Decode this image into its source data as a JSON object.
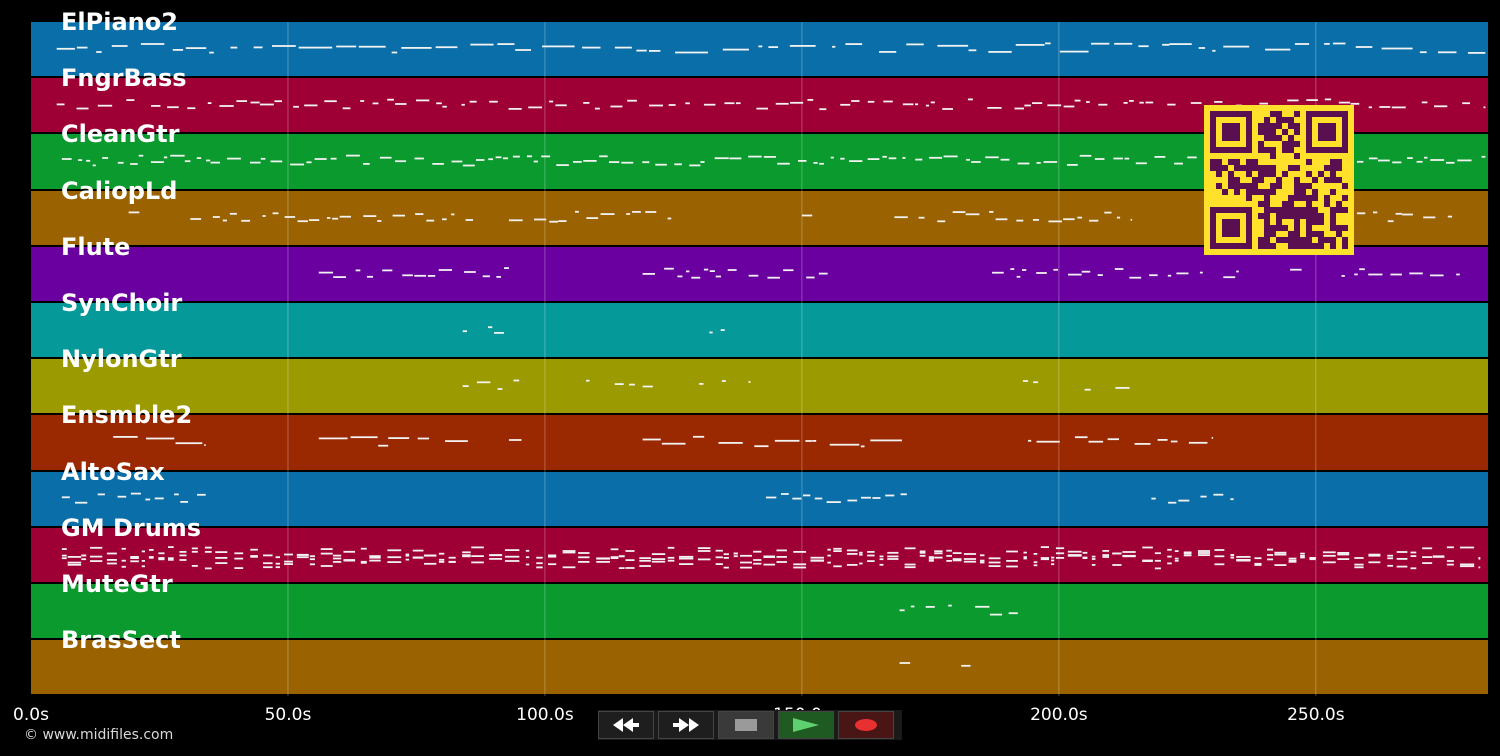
{
  "lanes": [
    {
      "name": "ElPiano2",
      "color": "#0a6ea8"
    },
    {
      "name": "FngrBass",
      "color": "#9e0035"
    },
    {
      "name": "CleanGtr",
      "color": "#0a9a2e"
    },
    {
      "name": "CaliopLd",
      "color": "#9a6200"
    },
    {
      "name": "Flute",
      "color": "#6a00a0"
    },
    {
      "name": "SynChoir",
      "color": "#06999a"
    },
    {
      "name": "NylonGtr",
      "color": "#9b9a00"
    },
    {
      "name": "Ensmble2",
      "color": "#9a2800"
    },
    {
      "name": "AltoSax",
      "color": "#0a6ea8"
    },
    {
      "name": "GM Drums",
      "color": "#9e0035"
    },
    {
      "name": "MuteGtr",
      "color": "#0a9a2e"
    },
    {
      "name": "BrasSect",
      "color": "#9a6200"
    }
  ],
  "time_axis": {
    "min_seconds": 0,
    "max_seconds": 283.5,
    "unit": "s",
    "ticks": [
      "0.0s",
      "50.0s",
      "100.0s",
      "150.0s",
      "200.0s",
      "250.0s"
    ],
    "tick_values": [
      0,
      50,
      100,
      150,
      200,
      250
    ],
    "grid": true
  },
  "transport": {
    "rewind_icon": "rewind-icon",
    "forward_icon": "fast-forward-icon",
    "stop_icon": "stop-icon",
    "play_icon": "play-icon",
    "record_icon": "record-icon"
  },
  "copyright": "© www.midifiles.com",
  "qr_code": {
    "visible": true,
    "color": "#ffe02a",
    "dark_color": "#5a1050"
  }
}
